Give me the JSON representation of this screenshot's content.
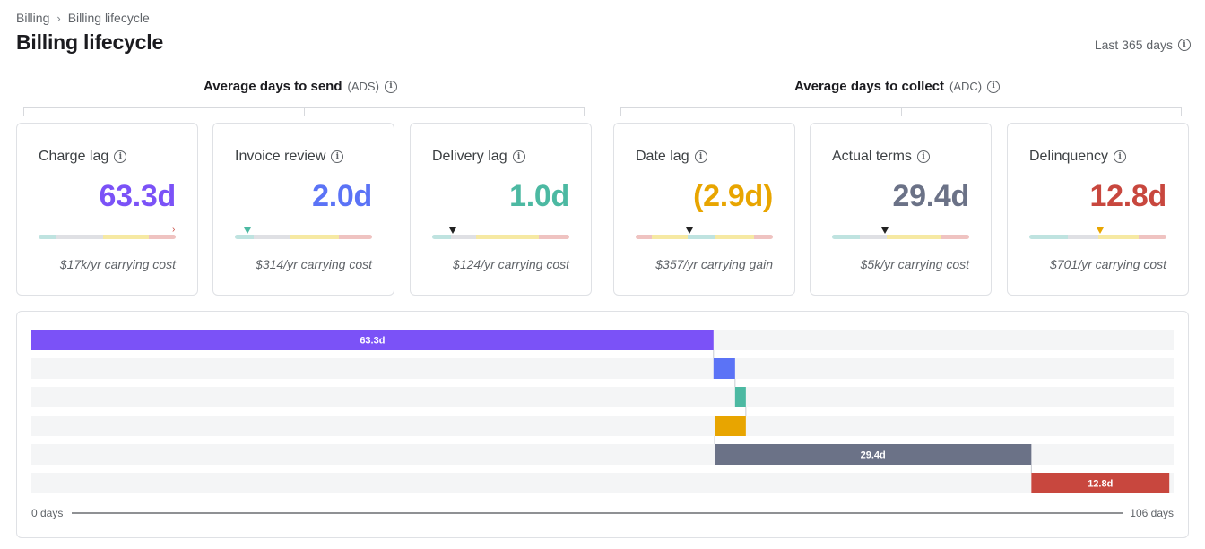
{
  "breadcrumb": {
    "parent": "Billing",
    "current": "Billing lifecycle"
  },
  "page_title": "Billing lifecycle",
  "date_range": "Last 365 days",
  "groups": [
    {
      "title": "Average days to send",
      "abbr": "(ADS)"
    },
    {
      "title": "Average days to collect",
      "abbr": "(ADC)"
    }
  ],
  "colors": {
    "charge_lag": "#7b52f7",
    "invoice_review": "#5b73f6",
    "delivery_lag": "#4cb9a2",
    "date_lag": "#e8a500",
    "actual_terms": "#6b7287",
    "delinquency": "#c8473e",
    "meter_teal": "#bfe3e0",
    "meter_grey": "#dfe0e4",
    "meter_yellow": "#f6e9a3",
    "meter_red": "#efc3c1",
    "track": "#f4f5f6"
  },
  "metrics": [
    {
      "label": "Charge lag",
      "value": "63.3d",
      "note": "$17k/yr carrying cost",
      "color_key": "charge_lag",
      "marker_pos": 1.0,
      "marker_color": "#c8473e",
      "marker_style": "chevron"
    },
    {
      "label": "Invoice review",
      "value": "2.0d",
      "note": "$314/yr carrying cost",
      "color_key": "invoice_review",
      "marker_pos": 0.09,
      "marker_color": "#4cb9a2",
      "marker_style": "triangle"
    },
    {
      "label": "Delivery lag",
      "value": "1.0d",
      "note": "$124/yr carrying cost",
      "color_key": "delivery_lag",
      "marker_pos": 0.15,
      "marker_color": "#222222",
      "marker_style": "triangle"
    },
    {
      "label": "Date lag",
      "value": "(2.9d)",
      "note": "$357/yr carrying gain",
      "color_key": "date_lag",
      "marker_pos": 0.39,
      "marker_color": "#222222",
      "marker_style": "triangle"
    },
    {
      "label": "Actual terms",
      "value": "29.4d",
      "note": "$5k/yr carrying cost",
      "color_key": "actual_terms",
      "marker_pos": 0.38,
      "marker_color": "#222222",
      "marker_style": "triangle"
    },
    {
      "label": "Delinquency",
      "value": "12.8d",
      "note": "$701/yr carrying cost",
      "color_key": "delinquency",
      "marker_pos": 0.51,
      "marker_color": "#e8a500",
      "marker_style": "triangle"
    }
  ],
  "meter_segments": [
    {
      "key": "ok",
      "colors": [
        "meter_teal",
        "meter_grey",
        "meter_yellow",
        "meter_red"
      ]
    }
  ],
  "chart_data": {
    "type": "bar",
    "subtype": "waterfall",
    "x_unit": "days",
    "xlim": [
      0,
      106
    ],
    "axis_min_label": "0 days",
    "axis_max_label": "106 days",
    "series": [
      {
        "name": "Charge lag",
        "start": 0,
        "end": 63.3,
        "label": "63.3d",
        "color_key": "charge_lag"
      },
      {
        "name": "Invoice review",
        "start": 63.3,
        "end": 65.3,
        "label": "",
        "color_key": "invoice_review"
      },
      {
        "name": "Delivery lag",
        "start": 65.3,
        "end": 66.3,
        "label": "",
        "color_key": "delivery_lag"
      },
      {
        "name": "Date lag",
        "start": 66.3,
        "end": 63.4,
        "label": "",
        "color_key": "date_lag"
      },
      {
        "name": "Actual terms",
        "start": 63.4,
        "end": 92.8,
        "label": "29.4d",
        "color_key": "actual_terms"
      },
      {
        "name": "Delinquency",
        "start": 92.8,
        "end": 105.6,
        "label": "12.8d",
        "color_key": "delinquency"
      }
    ]
  }
}
